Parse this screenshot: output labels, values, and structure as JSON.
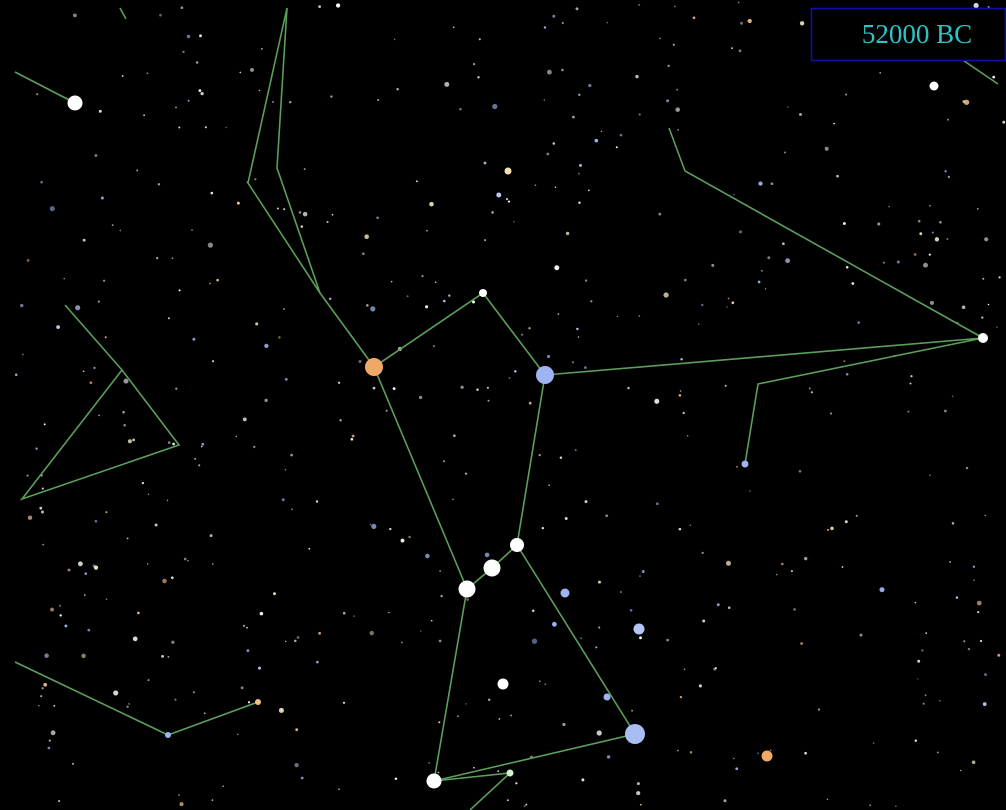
{
  "era_label": "52000 BC"
}
